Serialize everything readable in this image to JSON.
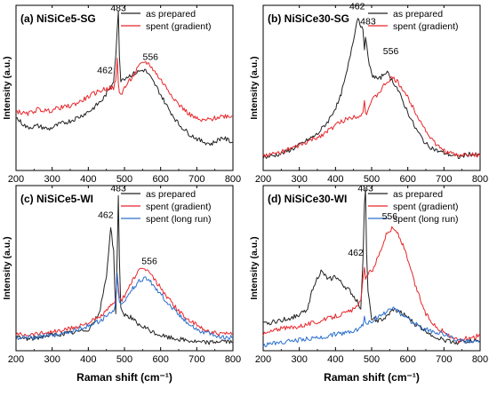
{
  "chart_data": [
    {
      "type": "line",
      "panel_label": "(a) NiSiCe5-SG",
      "xlabel": "",
      "ylabel": "Intensity (a.u.)",
      "xlim": [
        200,
        800
      ],
      "xticks": [
        "200",
        "300",
        "400",
        "500",
        "600",
        "700",
        "800"
      ],
      "legend_position": "top-right",
      "annotations": [
        {
          "text": "483",
          "x": 483,
          "y": 0.965
        },
        {
          "text": "462",
          "x": 446,
          "y": 0.59
        },
        {
          "text": "556",
          "x": 572,
          "y": 0.67
        }
      ],
      "series": [
        {
          "name": "as prepared",
          "color": "#222222",
          "x": [
            200,
            230,
            260,
            290,
            320,
            350,
            380,
            410,
            440,
            460,
            470,
            476,
            480,
            483,
            486,
            490,
            500,
            520,
            540,
            556,
            570,
            590,
            620,
            650,
            680,
            710,
            740,
            770,
            800
          ],
          "y": [
            0.32,
            0.26,
            0.27,
            0.25,
            0.28,
            0.3,
            0.33,
            0.37,
            0.43,
            0.5,
            0.55,
            0.7,
            0.85,
            0.96,
            0.7,
            0.55,
            0.56,
            0.58,
            0.6,
            0.61,
            0.57,
            0.5,
            0.38,
            0.28,
            0.22,
            0.18,
            0.16,
            0.2,
            0.17
          ]
        },
        {
          "name": "spent (gradient)",
          "color": "#e8262b",
          "x": [
            200,
            230,
            260,
            290,
            320,
            350,
            380,
            410,
            440,
            460,
            470,
            476,
            480,
            483,
            486,
            490,
            500,
            520,
            540,
            556,
            570,
            590,
            620,
            650,
            680,
            710,
            740,
            770,
            800
          ],
          "y": [
            0.36,
            0.34,
            0.37,
            0.36,
            0.38,
            0.39,
            0.42,
            0.46,
            0.49,
            0.5,
            0.5,
            0.54,
            0.68,
            0.52,
            0.48,
            0.46,
            0.5,
            0.56,
            0.63,
            0.66,
            0.64,
            0.58,
            0.49,
            0.4,
            0.34,
            0.3,
            0.31,
            0.33,
            0.33
          ]
        }
      ]
    },
    {
      "type": "line",
      "panel_label": "(b) NiSiCe30-SG",
      "xlabel": "",
      "ylabel": "Intensity (a.u.)",
      "xlim": [
        200,
        800
      ],
      "xticks": [
        "200",
        "300",
        "400",
        "500",
        "600",
        "700",
        "800"
      ],
      "legend_position": "top-right",
      "annotations": [
        {
          "text": "462",
          "x": 460,
          "y": 0.975
        },
        {
          "text": "483",
          "x": 490,
          "y": 0.885
        },
        {
          "text": "556",
          "x": 553,
          "y": 0.705
        }
      ],
      "series": [
        {
          "name": "as prepared",
          "color": "#222222",
          "x": [
            200,
            230,
            260,
            290,
            320,
            350,
            380,
            410,
            430,
            450,
            462,
            470,
            476,
            480,
            483,
            490,
            500,
            520,
            540,
            556,
            570,
            590,
            620,
            650,
            680,
            710,
            740,
            770,
            800
          ],
          "y": [
            0.08,
            0.09,
            0.11,
            0.14,
            0.18,
            0.22,
            0.3,
            0.42,
            0.58,
            0.8,
            0.93,
            0.88,
            0.84,
            0.74,
            0.82,
            0.68,
            0.58,
            0.55,
            0.6,
            0.55,
            0.5,
            0.4,
            0.26,
            0.16,
            0.12,
            0.1,
            0.08,
            0.1,
            0.09
          ]
        },
        {
          "name": "spent (gradient)",
          "color": "#e8262b",
          "x": [
            200,
            230,
            260,
            290,
            320,
            350,
            380,
            410,
            440,
            460,
            470,
            476,
            480,
            483,
            486,
            490,
            500,
            520,
            540,
            556,
            570,
            590,
            620,
            650,
            680,
            710,
            740,
            770,
            800
          ],
          "y": [
            0.09,
            0.1,
            0.12,
            0.14,
            0.17,
            0.2,
            0.24,
            0.29,
            0.32,
            0.33,
            0.34,
            0.35,
            0.42,
            0.36,
            0.35,
            0.37,
            0.42,
            0.47,
            0.53,
            0.56,
            0.54,
            0.48,
            0.36,
            0.24,
            0.15,
            0.11,
            0.09,
            0.1,
            0.09
          ]
        }
      ]
    },
    {
      "type": "line",
      "panel_label": "(c) NiSiCe5-WI",
      "xlabel": "Raman shift (cm⁻¹)",
      "ylabel": "Intensity (a.u.)",
      "xlim": [
        200,
        800
      ],
      "xticks": [
        "200",
        "300",
        "400",
        "500",
        "600",
        "700",
        "800"
      ],
      "legend_position": "top-right",
      "annotations": [
        {
          "text": "462",
          "x": 448,
          "y": 0.805
        },
        {
          "text": "483",
          "x": 483,
          "y": 0.965
        },
        {
          "text": "556",
          "x": 569,
          "y": 0.525
        }
      ],
      "series": [
        {
          "name": "as prepared",
          "color": "#222222",
          "x": [
            200,
            240,
            280,
            320,
            360,
            400,
            430,
            450,
            462,
            470,
            476,
            480,
            483,
            486,
            490,
            500,
            520,
            540,
            556,
            570,
            590,
            620,
            650,
            680,
            710,
            740,
            770,
            800
          ],
          "y": [
            0.08,
            0.07,
            0.09,
            0.1,
            0.11,
            0.13,
            0.22,
            0.45,
            0.75,
            0.6,
            0.22,
            0.6,
            0.95,
            0.55,
            0.25,
            0.22,
            0.2,
            0.15,
            0.14,
            0.12,
            0.1,
            0.08,
            0.07,
            0.06,
            0.05,
            0.05,
            0.06,
            0.05
          ]
        },
        {
          "name": "spent (gradient)",
          "color": "#e8262b",
          "x": [
            200,
            240,
            280,
            320,
            360,
            400,
            430,
            450,
            462,
            470,
            476,
            480,
            483,
            486,
            490,
            500,
            520,
            540,
            556,
            570,
            590,
            620,
            650,
            680,
            710,
            740,
            770,
            800
          ],
          "y": [
            0.1,
            0.1,
            0.11,
            0.12,
            0.14,
            0.17,
            0.2,
            0.24,
            0.27,
            0.28,
            0.33,
            0.47,
            0.38,
            0.32,
            0.3,
            0.33,
            0.42,
            0.48,
            0.5,
            0.47,
            0.41,
            0.32,
            0.24,
            0.18,
            0.14,
            0.11,
            0.1,
            0.1
          ]
        },
        {
          "name": "spent (long run)",
          "color": "#2a6fce",
          "x": [
            200,
            240,
            280,
            320,
            360,
            400,
            430,
            450,
            462,
            470,
            476,
            480,
            483,
            486,
            490,
            500,
            520,
            540,
            556,
            570,
            590,
            620,
            650,
            680,
            710,
            740,
            770,
            800
          ],
          "y": [
            0.08,
            0.08,
            0.09,
            0.1,
            0.12,
            0.15,
            0.18,
            0.21,
            0.23,
            0.24,
            0.3,
            0.46,
            0.36,
            0.29,
            0.27,
            0.3,
            0.37,
            0.42,
            0.44,
            0.42,
            0.37,
            0.29,
            0.22,
            0.16,
            0.12,
            0.1,
            0.08,
            0.08
          ]
        }
      ]
    },
    {
      "type": "line",
      "panel_label": "(d) NiSiCe30-WI",
      "xlabel": "Raman shift (cm⁻¹)",
      "ylabel": "Intensity (a.u.)",
      "xlim": [
        200,
        800
      ],
      "xticks": [
        "200",
        "300",
        "400",
        "500",
        "600",
        "700",
        "800"
      ],
      "legend_position": "top-right",
      "annotations": [
        {
          "text": "483",
          "x": 483,
          "y": 0.965
        },
        {
          "text": "462",
          "x": 456,
          "y": 0.575
        },
        {
          "text": "556",
          "x": 550,
          "y": 0.795
        }
      ],
      "series": [
        {
          "name": "as prepared",
          "color": "#222222",
          "x": [
            200,
            240,
            280,
            320,
            340,
            360,
            380,
            400,
            420,
            440,
            460,
            470,
            476,
            480,
            483,
            486,
            490,
            500,
            520,
            540,
            560,
            590,
            620,
            650,
            680,
            710,
            740,
            770,
            800
          ],
          "y": [
            0.16,
            0.18,
            0.2,
            0.24,
            0.4,
            0.48,
            0.43,
            0.45,
            0.4,
            0.36,
            0.3,
            0.26,
            0.55,
            0.9,
            0.97,
            0.6,
            0.35,
            0.2,
            0.18,
            0.2,
            0.25,
            0.22,
            0.16,
            0.12,
            0.08,
            0.06,
            0.05,
            0.06,
            0.06
          ]
        },
        {
          "name": "spent (gradient)",
          "color": "#e8262b",
          "x": [
            200,
            240,
            280,
            320,
            360,
            400,
            430,
            460,
            470,
            476,
            480,
            483,
            486,
            490,
            500,
            520,
            540,
            556,
            570,
            590,
            620,
            650,
            680,
            710,
            740,
            770,
            800
          ],
          "y": [
            0.1,
            0.13,
            0.14,
            0.16,
            0.18,
            0.21,
            0.23,
            0.26,
            0.3,
            0.45,
            0.5,
            0.42,
            0.44,
            0.47,
            0.48,
            0.58,
            0.7,
            0.74,
            0.72,
            0.62,
            0.4,
            0.22,
            0.14,
            0.1,
            0.06,
            0.08,
            0.09
          ]
        },
        {
          "name": "spent (long run)",
          "color": "#2a6fce",
          "x": [
            200,
            240,
            280,
            320,
            360,
            400,
            430,
            460,
            470,
            476,
            480,
            483,
            486,
            490,
            500,
            520,
            540,
            560,
            580,
            600,
            630,
            660,
            690,
            720,
            750,
            780,
            800
          ],
          "y": [
            0.03,
            0.05,
            0.06,
            0.07,
            0.08,
            0.1,
            0.11,
            0.13,
            0.14,
            0.16,
            0.22,
            0.17,
            0.16,
            0.17,
            0.18,
            0.21,
            0.23,
            0.27,
            0.22,
            0.19,
            0.15,
            0.12,
            0.11,
            0.08,
            0.06,
            0.05,
            0.05
          ]
        }
      ]
    }
  ]
}
